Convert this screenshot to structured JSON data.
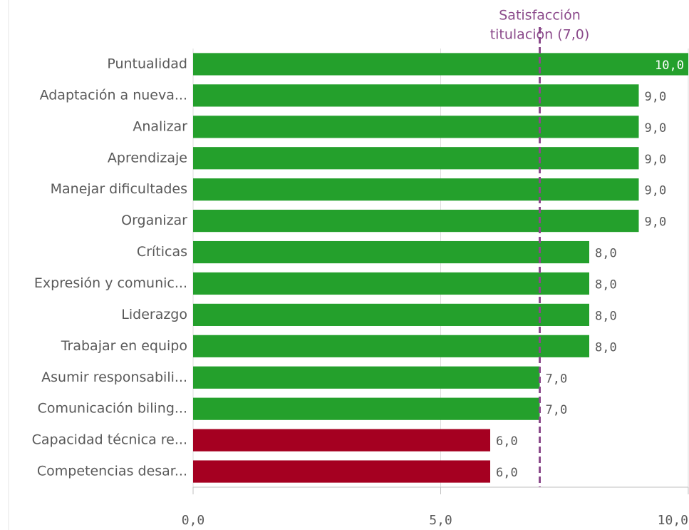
{
  "chart_data": {
    "type": "bar",
    "orientation": "horizontal",
    "categories": [
      "Puntualidad",
      "Adaptación a nueva...",
      "Analizar",
      "Aprendizaje",
      "Manejar dificultades",
      "Organizar",
      "Críticas",
      "Expresión y comunic...",
      "Liderazgo",
      "Trabajar en equipo",
      "Asumir responsabili...",
      "Comunicación biling...",
      "Capacidad técnica re...",
      "Competencias desar..."
    ],
    "values": [
      10,
      9,
      9,
      9,
      9,
      9,
      8,
      8,
      8,
      8,
      7,
      7,
      6,
      6
    ],
    "value_labels": [
      "10,0",
      "9,0",
      "9,0",
      "9,0",
      "9,0",
      "9,0",
      "8,0",
      "8,0",
      "8,0",
      "8,0",
      "7,0",
      "7,0",
      "6,0",
      "6,0"
    ],
    "colors": [
      "#24a02c",
      "#24a02c",
      "#24a02c",
      "#24a02c",
      "#24a02c",
      "#24a02c",
      "#24a02c",
      "#24a02c",
      "#24a02c",
      "#24a02c",
      "#24a02c",
      "#24a02c",
      "#a50021",
      "#a50021"
    ],
    "xlim": [
      0,
      10
    ],
    "xticks": [
      {
        "value": 0,
        "label": "0,0"
      },
      {
        "value": 5,
        "label": "5,0"
      },
      {
        "value": 10,
        "label": "10,0"
      }
    ],
    "grid": true,
    "reference_line": {
      "value": 7,
      "label_lines": [
        "Satisfacción",
        "titulación (7,0)"
      ],
      "color": "#8b4a8b"
    }
  }
}
